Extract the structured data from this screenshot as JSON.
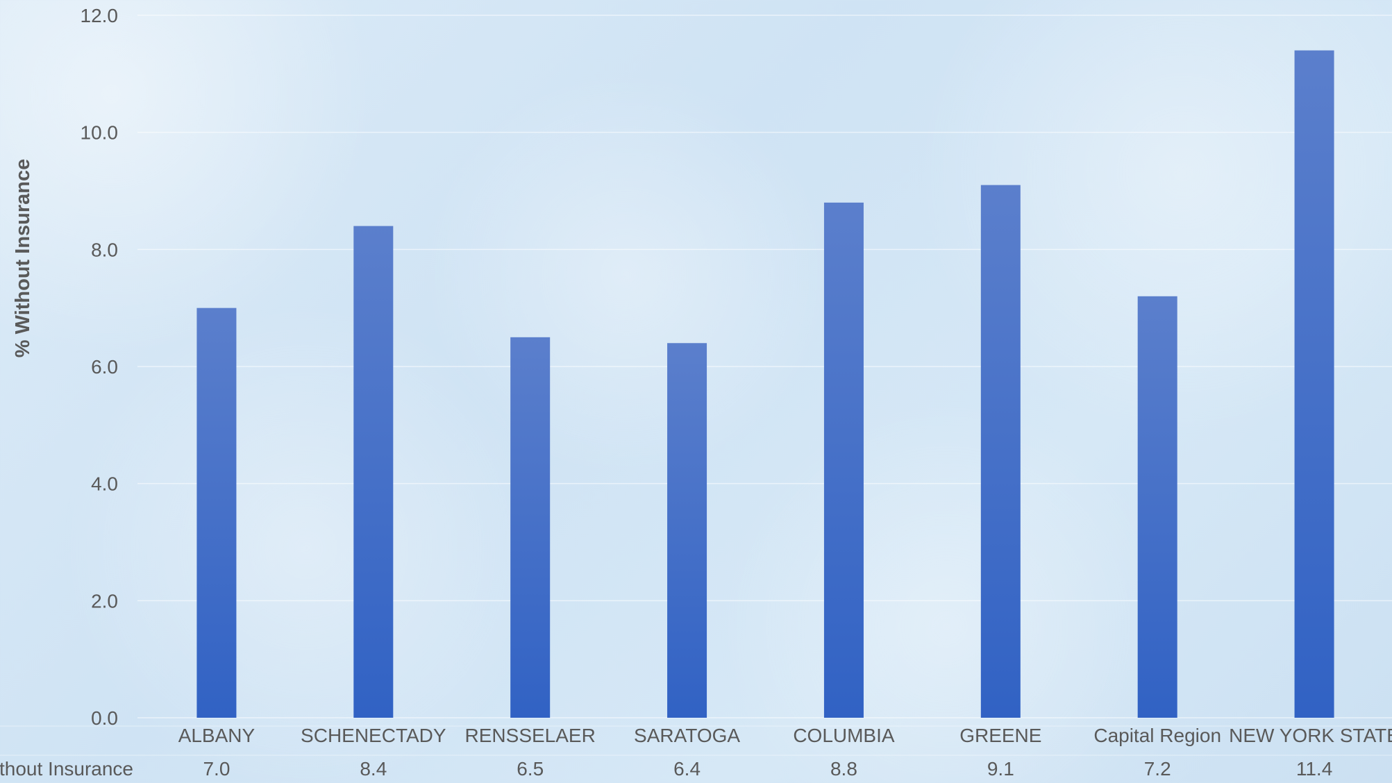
{
  "chart_data": {
    "type": "bar",
    "categories": [
      "ALBANY",
      "SCHENECTADY",
      "RENSSELAER",
      "SARATOGA",
      "COLUMBIA",
      "GREENE",
      "Capital Region",
      "NEW YORK STATE"
    ],
    "series": [
      {
        "name": "% Without Insurance",
        "values": [
          7.0,
          8.4,
          6.5,
          6.4,
          8.8,
          9.1,
          7.2,
          11.4
        ]
      }
    ],
    "value_labels": [
      "7.0",
      "8.4",
      "6.5",
      "6.4",
      "8.8",
      "9.1",
      "7.2",
      "11.4"
    ],
    "ylabel": "% Without Insurance",
    "xlabel": "",
    "ylim": [
      0,
      12
    ],
    "yticks": [
      0,
      2,
      4,
      6,
      8,
      10,
      12
    ],
    "ytick_labels": [
      "0.0",
      "2.0",
      "4.0",
      "6.0",
      "8.0",
      "10.0",
      "12.0"
    ],
    "grid": true,
    "data_table_row_label": "% Without Insurance",
    "bar_color_top": "#5b7fcc",
    "bar_color_bottom": "#3162c4"
  }
}
